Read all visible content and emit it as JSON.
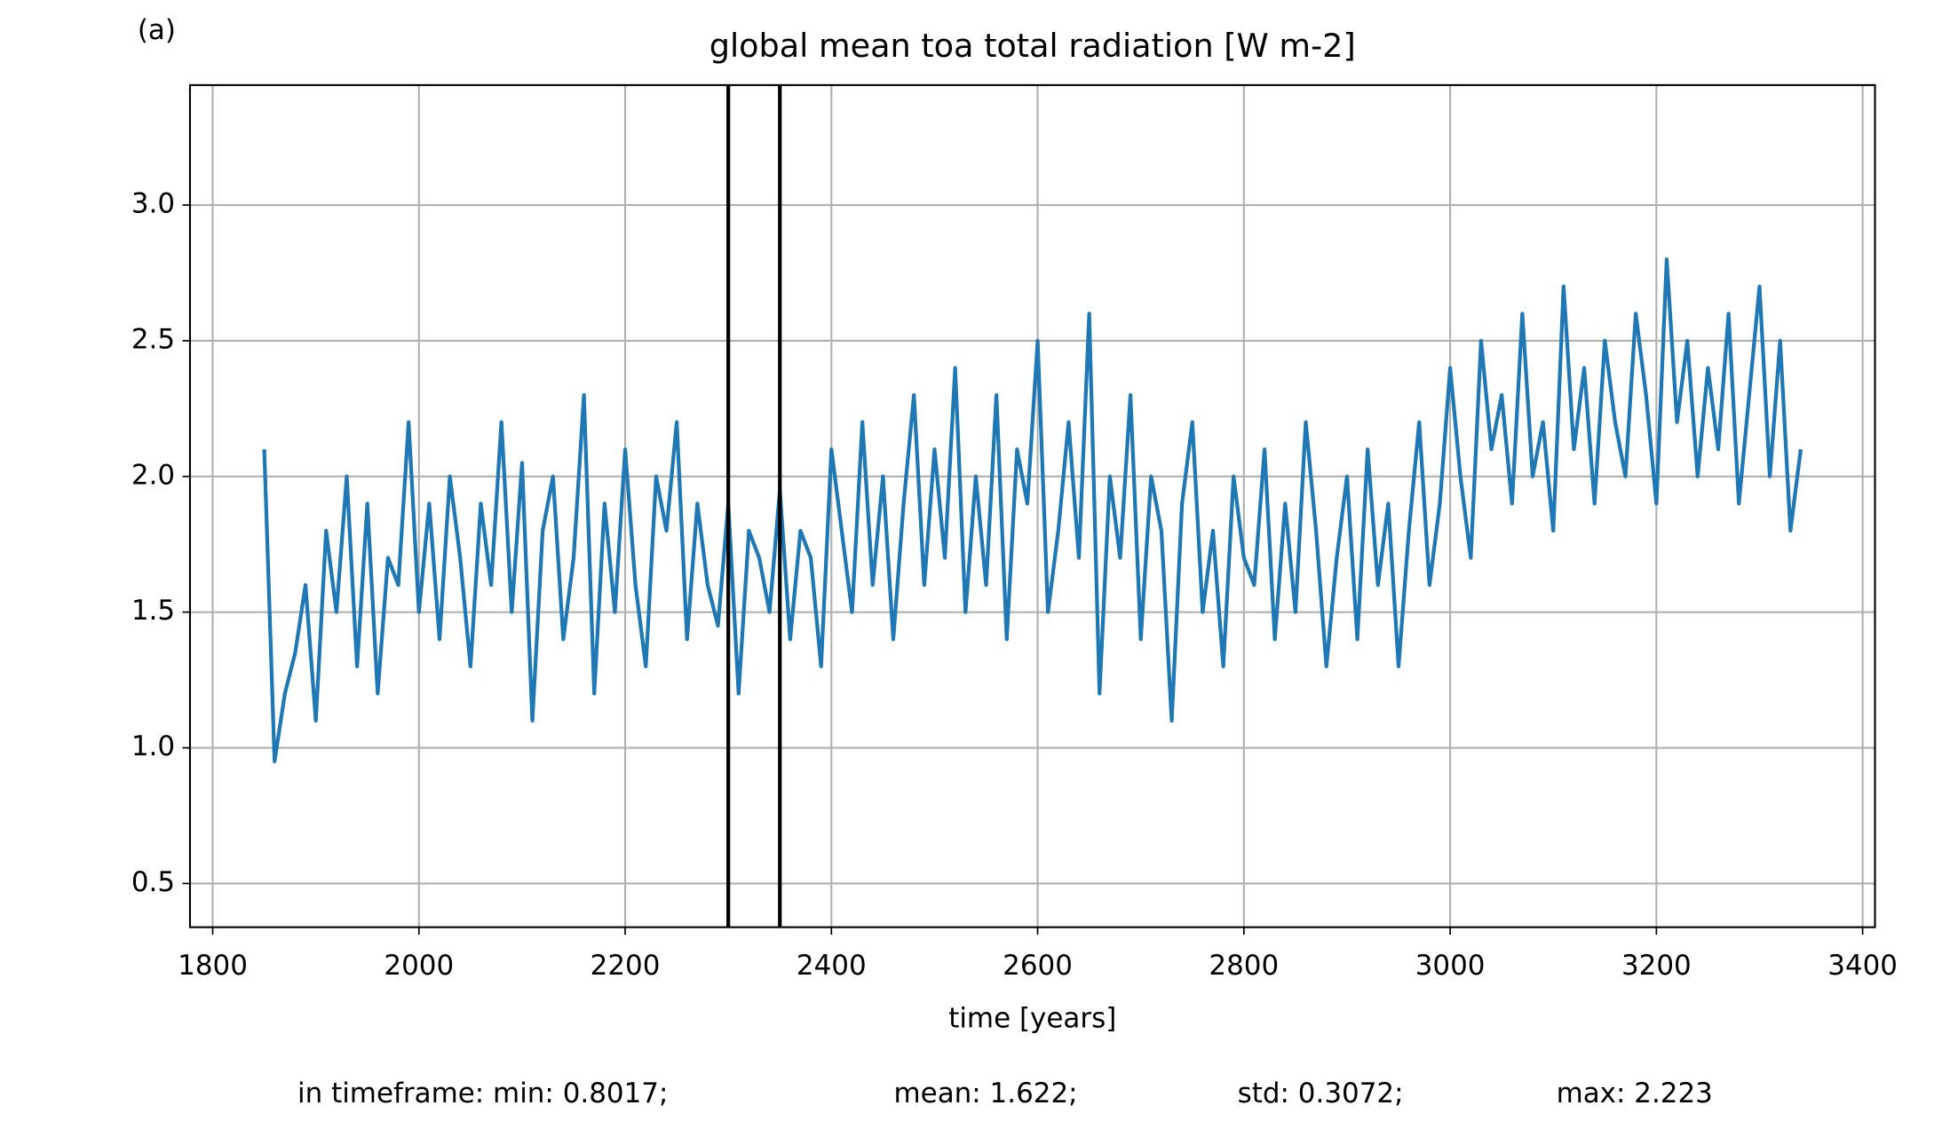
{
  "chart_data": {
    "type": "line",
    "panel_label": "(a)",
    "title": "global mean toa total radiation [W m-2]",
    "xlabel": "time [years]",
    "footer": [
      "in timeframe: min: 0.8017;",
      "mean: 1.622;",
      "std: 0.3072;",
      "max: 2.223"
    ],
    "xlim": [
      1778,
      3412
    ],
    "xticks": [
      1800,
      2000,
      2200,
      2400,
      2600,
      2800,
      3000,
      3200,
      3400
    ],
    "ylim": [
      0.339,
      3.442
    ],
    "yticks": [
      0.5,
      {
        "value": 1,
        "label": "1.0"
      },
      1.5,
      {
        "value": 2,
        "label": "2.0"
      },
      2.5,
      {
        "value": 3,
        "label": "3.0"
      }
    ],
    "grid": true,
    "vlines": [
      2300,
      2350
    ],
    "vline_color": "#000000",
    "x": [
      1850,
      1860,
      1870,
      1880,
      1890,
      1900,
      1910,
      1920,
      1930,
      1940,
      1950,
      1960,
      1970,
      1980,
      1990,
      2000,
      2010,
      2020,
      2030,
      2040,
      2050,
      2060,
      2070,
      2080,
      2090,
      2100,
      2110,
      2120,
      2130,
      2140,
      2150,
      2160,
      2170,
      2180,
      2190,
      2200,
      2210,
      2220,
      2230,
      2240,
      2250,
      2260,
      2270,
      2280,
      2290,
      2300,
      2310,
      2320,
      2330,
      2340,
      2350,
      2360,
      2370,
      2380,
      2390,
      2400,
      2410,
      2420,
      2430,
      2440,
      2450,
      2460,
      2470,
      2480,
      2490,
      2500,
      2510,
      2520,
      2530,
      2540,
      2550,
      2560,
      2570,
      2580,
      2590,
      2600,
      2610,
      2620,
      2630,
      2640,
      2650,
      2660,
      2670,
      2680,
      2690,
      2700,
      2710,
      2720,
      2730,
      2740,
      2750,
      2760,
      2770,
      2780,
      2790,
      2800,
      2810,
      2820,
      2830,
      2840,
      2850,
      2860,
      2870,
      2880,
      2890,
      2900,
      2910,
      2920,
      2930,
      2940,
      2950,
      2960,
      2970,
      2980,
      2990,
      3000,
      3010,
      3020,
      3030,
      3040,
      3050,
      3060,
      3070,
      3080,
      3090,
      3100,
      3110,
      3120,
      3130,
      3140,
      3150,
      3160,
      3170,
      3180,
      3190,
      3200,
      3210,
      3220,
      3230,
      3240,
      3250,
      3260,
      3270,
      3280,
      3290,
      3300,
      3310,
      3320,
      3330,
      3340
    ],
    "series": [
      {
        "color": "#1f77b4",
        "values": [
          2.1,
          0.95,
          1.2,
          1.35,
          1.6,
          1.1,
          1.8,
          1.5,
          2.0,
          1.3,
          1.9,
          1.2,
          1.7,
          1.6,
          2.2,
          1.5,
          1.9,
          1.4,
          2.0,
          1.7,
          1.3,
          1.9,
          1.6,
          2.2,
          1.5,
          2.05,
          1.1,
          1.8,
          2.0,
          1.4,
          1.7,
          2.3,
          1.2,
          1.9,
          1.5,
          2.1,
          1.6,
          1.3,
          2.0,
          1.8,
          2.2,
          1.4,
          1.9,
          1.6,
          1.45,
          1.9,
          1.2,
          1.8,
          1.7,
          1.5,
          1.95,
          1.4,
          1.8,
          1.7,
          1.3,
          2.1,
          1.8,
          1.5,
          2.2,
          1.6,
          2.0,
          1.4,
          1.9,
          2.3,
          1.6,
          2.1,
          1.7,
          2.4,
          1.5,
          2.0,
          1.6,
          2.3,
          1.4,
          2.1,
          1.9,
          2.5,
          1.5,
          1.8,
          2.2,
          1.7,
          2.6,
          1.2,
          2.0,
          1.7,
          2.3,
          1.4,
          2.0,
          1.8,
          1.1,
          1.9,
          2.2,
          1.5,
          1.8,
          1.3,
          2.0,
          1.7,
          1.6,
          2.1,
          1.4,
          1.9,
          1.5,
          2.2,
          1.8,
          1.3,
          1.7,
          2.0,
          1.4,
          2.1,
          1.6,
          1.9,
          1.3,
          1.8,
          2.2,
          1.6,
          1.9,
          2.4,
          2.0,
          1.7,
          2.5,
          2.1,
          2.3,
          1.9,
          2.6,
          2.0,
          2.2,
          1.8,
          2.7,
          2.1,
          2.4,
          1.9,
          2.5,
          2.2,
          2.0,
          2.6,
          2.3,
          1.9,
          2.8,
          2.2,
          2.5,
          2.0,
          2.4,
          2.1,
          2.6,
          1.9,
          2.3,
          2.7,
          2.0,
          2.5,
          1.8,
          2.1
        ]
      }
    ]
  }
}
